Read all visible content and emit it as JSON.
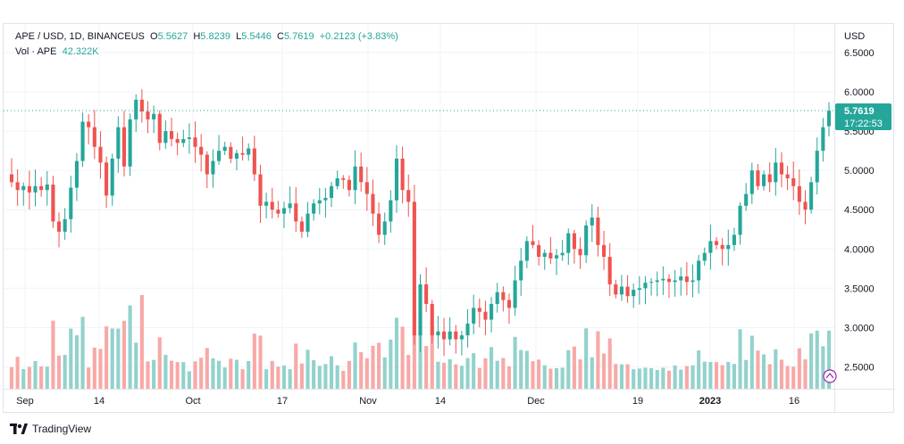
{
  "legend": {
    "symbol": "APE / USD, 1D, BINANCEUS",
    "o_label": "O",
    "o": "5.5627",
    "h_label": "H",
    "h": "5.8239",
    "l_label": "L",
    "l": "5.5446",
    "c_label": "C",
    "c": "5.7619",
    "change": "+0.2123 (+3.83%)",
    "vol_label": "Vol · APE",
    "vol_value": "42.322K"
  },
  "price_axis_title": "USD",
  "price_tag": {
    "price": "5.7619",
    "countdown": "17:22:53"
  },
  "footer": {
    "brand": "TradingView"
  },
  "colors": {
    "up": "#26a69a",
    "down": "#ef5350",
    "up_vol": "#92d2cc",
    "down_vol": "#f7a9a7",
    "grid": "#f0f3fa"
  },
  "chart_data": {
    "type": "candlestick",
    "symbol": "APE / USD",
    "interval": "1D",
    "exchange": "BINANCEUS",
    "ylim": [
      2.2,
      6.75
    ],
    "y_ticks": [
      "6.5000",
      "6.0000",
      "5.5000",
      "5.0000",
      "4.5000",
      "4.0000",
      "3.5000",
      "3.0000",
      "2.5000"
    ],
    "x_ticks": [
      "Sep",
      "14",
      "Oct",
      "17",
      "Nov",
      "14",
      "Dec",
      "19",
      "2023",
      "16"
    ],
    "grid": true,
    "last_price_line": 5.7619,
    "close": [
      4.85,
      4.75,
      4.8,
      4.72,
      4.8,
      4.75,
      4.82,
      4.35,
      4.22,
      4.38,
      4.78,
      5.12,
      5.62,
      5.55,
      5.3,
      5.1,
      4.68,
      5.15,
      5.55,
      5.05,
      5.65,
      5.9,
      5.75,
      5.65,
      5.72,
      5.35,
      5.5,
      5.4,
      5.35,
      5.4,
      5.42,
      5.3,
      5.2,
      4.95,
      5.12,
      5.25,
      5.3,
      5.15,
      5.22,
      5.2,
      5.28,
      4.95,
      4.55,
      4.6,
      4.5,
      4.45,
      4.52,
      4.58,
      4.35,
      4.22,
      4.45,
      4.58,
      4.62,
      4.65,
      4.8,
      4.9,
      4.88,
      4.75,
      5.05,
      4.85,
      4.7,
      4.45,
      4.18,
      4.35,
      4.62,
      5.15,
      4.75,
      4.6,
      2.9,
      3.55,
      3.3,
      2.9,
      2.95,
      2.85,
      2.95,
      2.85,
      2.9,
      3.05,
      3.25,
      3.2,
      3.1,
      3.3,
      3.45,
      3.35,
      3.25,
      3.6,
      3.85,
      4.1,
      4.05,
      3.9,
      3.95,
      3.88,
      3.92,
      3.95,
      4.2,
      4.0,
      3.92,
      4.3,
      4.4,
      4.05,
      3.9,
      3.55,
      3.42,
      3.52,
      3.4,
      3.48,
      3.5,
      3.57,
      3.58,
      3.6,
      3.62,
      3.58,
      3.6,
      3.65,
      3.58,
      3.6,
      3.85,
      3.95,
      4.1,
      4.05,
      4.0,
      4.05,
      4.18,
      4.55,
      4.7,
      5.0,
      4.8,
      4.95,
      4.85,
      5.1,
      4.95,
      4.9,
      4.8,
      4.6,
      4.5,
      4.85,
      5.25,
      5.55,
      5.76
    ],
    "volume_axis": "hidden",
    "series": [
      {
        "name": "Vol · APE",
        "last": "42.322K"
      }
    ]
  }
}
